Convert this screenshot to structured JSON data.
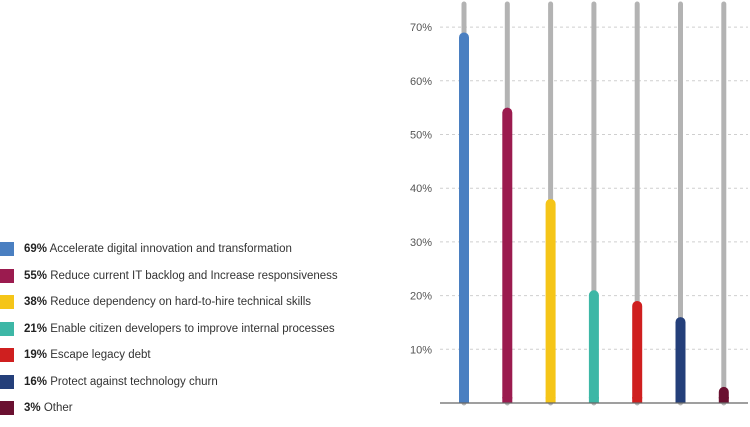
{
  "chart_data": {
    "type": "bar",
    "categories": [
      "Accelerate digital innovation and transformation",
      "Reduce current IT backlog and Increase responsiveness",
      "Reduce dependency on hard-to-hire technical skills",
      "Enable citizen developers to improve internal processes",
      "Escape legacy debt",
      "Protect against technology churn",
      "Other"
    ],
    "values": [
      69,
      55,
      38,
      21,
      19,
      16,
      3
    ],
    "value_labels": [
      "69%",
      "55%",
      "38%",
      "21%",
      "19%",
      "16%",
      "3%"
    ],
    "colors": [
      "#4a7fc1",
      "#9b1b4f",
      "#f5c518",
      "#3db7a6",
      "#cf1f1f",
      "#243f7a",
      "#6a1030"
    ],
    "track_color": "#b3b3b3",
    "yticks": [
      "10%",
      "20%",
      "30%",
      "40%",
      "50%",
      "60%",
      "70%"
    ],
    "ylim": [
      0,
      75
    ],
    "grid": true,
    "legend_position": "left"
  }
}
